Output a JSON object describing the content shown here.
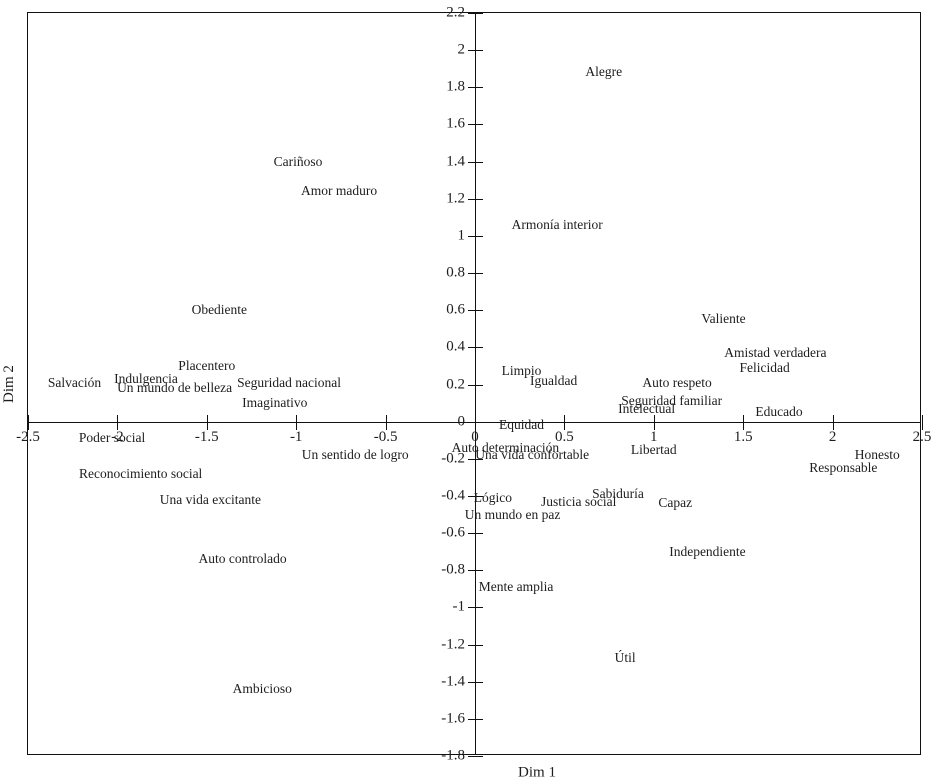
{
  "chart_data": {
    "type": "scatter",
    "title": "",
    "xlabel": "Dim 1",
    "ylabel": "Dim 2",
    "xlim": [
      -2.5,
      2.5
    ],
    "ylim": [
      -1.8,
      2.2
    ],
    "x_ticks": [
      -2.5,
      -2,
      -1.5,
      -1,
      -0.5,
      0,
      0.5,
      1,
      1.5,
      2,
      2.5
    ],
    "y_ticks": [
      2.2,
      2,
      1.8,
      1.6,
      1.4,
      1.2,
      1,
      0.8,
      0.6,
      0.4,
      0.2,
      0,
      -0.2,
      -0.4,
      -0.6,
      -0.8,
      -1,
      -1.2,
      -1.4,
      -1.6,
      -1.8
    ],
    "grid": false,
    "legend": "none",
    "marker_style": "text-labels-only",
    "axes_style": "cross-at-origin-with-outer-frame",
    "points": [
      {
        "label": "Alegre",
        "x": 0.72,
        "y": 1.88
      },
      {
        "label": "Cariñoso",
        "x": -0.99,
        "y": 1.4
      },
      {
        "label": "Amor maduro",
        "x": -0.76,
        "y": 1.24
      },
      {
        "label": "Armonía interior",
        "x": 0.46,
        "y": 1.06
      },
      {
        "label": "Obediente",
        "x": -1.43,
        "y": 0.6
      },
      {
        "label": "Valiente",
        "x": 1.39,
        "y": 0.55
      },
      {
        "label": "Amistad verdadera",
        "x": 1.68,
        "y": 0.37
      },
      {
        "label": "Placentero",
        "x": -1.5,
        "y": 0.3
      },
      {
        "label": "Felicidad",
        "x": 1.62,
        "y": 0.29
      },
      {
        "label": "Limpio",
        "x": 0.26,
        "y": 0.27
      },
      {
        "label": "Indulgencia",
        "x": -1.84,
        "y": 0.23
      },
      {
        "label": "Igualdad",
        "x": 0.44,
        "y": 0.22
      },
      {
        "label": "Salvación",
        "x": -2.24,
        "y": 0.21
      },
      {
        "label": "Seguridad nacional",
        "x": -1.04,
        "y": 0.21
      },
      {
        "label": "Auto respeto",
        "x": 1.13,
        "y": 0.21
      },
      {
        "label": "Un mundo de belleza",
        "x": -1.68,
        "y": 0.18
      },
      {
        "label": "Seguridad familiar",
        "x": 1.1,
        "y": 0.11
      },
      {
        "label": "Imaginativo",
        "x": -1.12,
        "y": 0.1
      },
      {
        "label": "Intelectual",
        "x": 0.96,
        "y": 0.07
      },
      {
        "label": "Educado",
        "x": 1.7,
        "y": 0.05
      },
      {
        "label": "Equidad",
        "x": 0.26,
        "y": -0.02
      },
      {
        "label": "Poder social",
        "x": -2.03,
        "y": -0.09
      },
      {
        "label": "Auto determinación",
        "x": 0.17,
        "y": -0.14
      },
      {
        "label": "Libertad",
        "x": 1.0,
        "y": -0.15
      },
      {
        "label": "Un sentido de logro",
        "x": -0.67,
        "y": -0.18
      },
      {
        "label": "Una vida confortable",
        "x": 0.32,
        "y": -0.18
      },
      {
        "label": "Honesto",
        "x": 2.25,
        "y": -0.18
      },
      {
        "label": "Responsable",
        "x": 2.06,
        "y": -0.25
      },
      {
        "label": "Reconocimiento social",
        "x": -1.87,
        "y": -0.28
      },
      {
        "label": "Sabiduría",
        "x": 0.8,
        "y": -0.39
      },
      {
        "label": "Lógico",
        "x": 0.1,
        "y": -0.41
      },
      {
        "label": "Una vida excitante",
        "x": -1.48,
        "y": -0.42
      },
      {
        "label": "Justicia social",
        "x": 0.58,
        "y": -0.43
      },
      {
        "label": "Capaz",
        "x": 1.12,
        "y": -0.44
      },
      {
        "label": "Un mundo en paz",
        "x": 0.21,
        "y": -0.5
      },
      {
        "label": "Independiente",
        "x": 1.3,
        "y": -0.7
      },
      {
        "label": "Auto controlado",
        "x": -1.3,
        "y": -0.74
      },
      {
        "label": "Mente amplia",
        "x": 0.23,
        "y": -0.89
      },
      {
        "label": "Útil",
        "x": 0.84,
        "y": -1.27
      },
      {
        "label": "Ambicioso",
        "x": -1.19,
        "y": -1.44
      }
    ]
  },
  "colors": {
    "text": "#1d1d1f",
    "axis_line": "#111111",
    "background": "#ffffff"
  }
}
